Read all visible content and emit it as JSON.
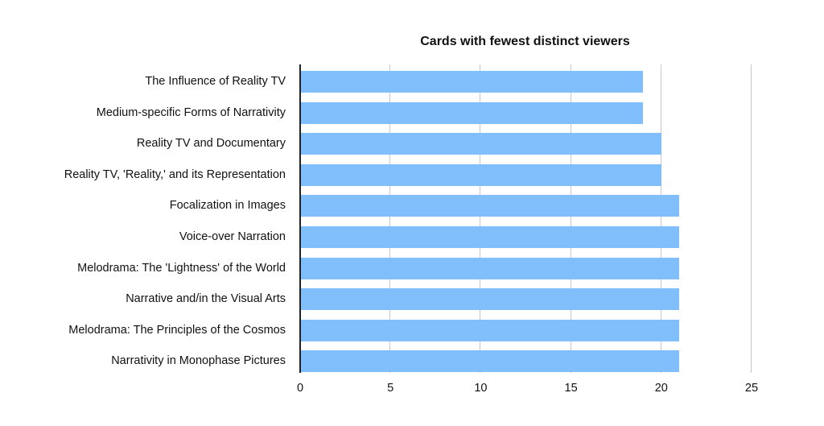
{
  "chart_data": {
    "type": "bar",
    "orientation": "horizontal",
    "title": "Cards with fewest distinct viewers",
    "xlabel": "",
    "ylabel": "",
    "categories": [
      "The Influence of Reality TV",
      "Medium-specific Forms of Narrativity",
      "Reality TV and Documentary",
      "Reality TV, 'Reality,' and its Representation",
      "Focalization in Images",
      "Voice-over Narration",
      "Melodrama: The 'Lightness' of the World",
      "Narrative and/in the Visual Arts",
      "Melodrama: The Principles of the Cosmos",
      "Narrativity in Monophase Pictures"
    ],
    "values": [
      19,
      19,
      20,
      20,
      21,
      21,
      21,
      21,
      21,
      21
    ],
    "xlim": [
      0,
      25
    ],
    "xticks": [
      "0",
      "5",
      "10",
      "15",
      "20",
      "25"
    ],
    "grid": true,
    "bar_color": "#80bffc"
  }
}
